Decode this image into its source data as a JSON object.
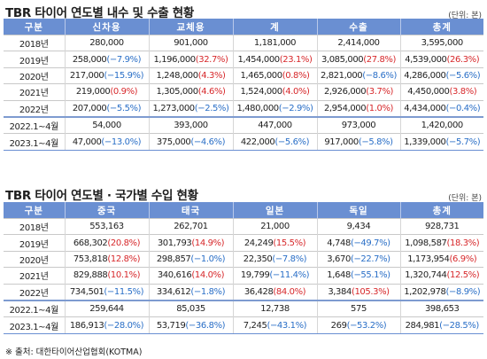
{
  "tables": [
    {
      "title": "TBR 타이어 연도별 내수 및 수출 현황",
      "unit": "(단위: 본)",
      "headers": [
        "구분",
        "신차용",
        "교체용",
        "계",
        "수출",
        "총계"
      ],
      "rows": [
        {
          "label": "2018년",
          "cells": [
            {
              "v": "280,000"
            },
            {
              "v": "901,000"
            },
            {
              "v": "1,181,000"
            },
            {
              "v": "2,414,000"
            },
            {
              "v": "3,595,000"
            }
          ]
        },
        {
          "label": "2019년",
          "cells": [
            {
              "v": "258,000",
              "c": "(−7.9%)",
              "s": "neg"
            },
            {
              "v": "1,196,000",
              "c": "(32.7%)",
              "s": "pos"
            },
            {
              "v": "1,454,000",
              "c": "(23.1%)",
              "s": "pos"
            },
            {
              "v": "3,085,000",
              "c": "(27.8%)",
              "s": "pos"
            },
            {
              "v": "4,539,000",
              "c": "(26.3%)",
              "s": "pos"
            }
          ]
        },
        {
          "label": "2020년",
          "cells": [
            {
              "v": "217,000",
              "c": "(−15.9%)",
              "s": "neg"
            },
            {
              "v": "1,248,000",
              "c": "(4.3%)",
              "s": "pos"
            },
            {
              "v": "1,465,000",
              "c": "(0.8%)",
              "s": "pos"
            },
            {
              "v": "2,821,000",
              "c": "(−8.6%)",
              "s": "neg"
            },
            {
              "v": "4,286,000",
              "c": "(−5.6%)",
              "s": "neg"
            }
          ]
        },
        {
          "label": "2021년",
          "cells": [
            {
              "v": "219,000",
              "c": "(0.9%)",
              "s": "pos"
            },
            {
              "v": "1,305,000",
              "c": "(4.6%)",
              "s": "pos"
            },
            {
              "v": "1,524,000",
              "c": "(4.0%)",
              "s": "pos"
            },
            {
              "v": "2,926,000",
              "c": "(3.7%)",
              "s": "pos"
            },
            {
              "v": "4,450,000",
              "c": "(3.8%)",
              "s": "pos"
            }
          ]
        },
        {
          "label": "2022년",
          "cells": [
            {
              "v": "207,000",
              "c": "(−5.5%)",
              "s": "neg"
            },
            {
              "v": "1,273,000",
              "c": "(−2.5%)",
              "s": "neg"
            },
            {
              "v": "1,480,000",
              "c": "(−2.9%)",
              "s": "neg"
            },
            {
              "v": "2,954,000",
              "c": "(1.0%)",
              "s": "pos"
            },
            {
              "v": "4,434,000",
              "c": "(−0.4%)",
              "s": "neg"
            }
          ]
        },
        {
          "label": "2022.1~4월",
          "group_start": true,
          "cells": [
            {
              "v": "54,000"
            },
            {
              "v": "393,000"
            },
            {
              "v": "447,000"
            },
            {
              "v": "973,000"
            },
            {
              "v": "1,420,000"
            }
          ]
        },
        {
          "label": "2023.1~4월",
          "cells": [
            {
              "v": "47,000",
              "c": "(−13.0%)",
              "s": "neg"
            },
            {
              "v": "375,000",
              "c": "(−4.6%)",
              "s": "neg"
            },
            {
              "v": "422,000",
              "c": "(−5.6%)",
              "s": "neg"
            },
            {
              "v": "917,000",
              "c": "(−5.8%)",
              "s": "neg"
            },
            {
              "v": "1,339,000",
              "c": "(−5.7%)",
              "s": "neg"
            }
          ]
        }
      ]
    },
    {
      "title": "TBR 타이어 연도별 · 국가별 수입 현황",
      "unit": "(단위: 본)",
      "headers": [
        "구분",
        "중국",
        "태국",
        "일본",
        "독일",
        "총계"
      ],
      "rows": [
        {
          "label": "2018년",
          "cells": [
            {
              "v": "553,163"
            },
            {
              "v": "262,701"
            },
            {
              "v": "21,000"
            },
            {
              "v": "9,434"
            },
            {
              "v": "928,731"
            }
          ]
        },
        {
          "label": "2019년",
          "cells": [
            {
              "v": "668,302",
              "c": "(20.8%)",
              "s": "pos"
            },
            {
              "v": "301,793",
              "c": "(14.9%)",
              "s": "pos"
            },
            {
              "v": "24,249",
              "c": "(15.5%)",
              "s": "pos"
            },
            {
              "v": "4,748",
              "c": "(−49.7%)",
              "s": "neg"
            },
            {
              "v": "1,098,587",
              "c": "(18.3%)",
              "s": "pos"
            }
          ]
        },
        {
          "label": "2020년",
          "cells": [
            {
              "v": "753,818",
              "c": "(12.8%)",
              "s": "pos"
            },
            {
              "v": "298,857",
              "c": "(−1.0%)",
              "s": "neg"
            },
            {
              "v": "22,350",
              "c": "(−7.8%)",
              "s": "neg"
            },
            {
              "v": "3,670",
              "c": "(−22.7%)",
              "s": "neg"
            },
            {
              "v": "1,173,954",
              "c": "(6.9%)",
              "s": "pos"
            }
          ]
        },
        {
          "label": "2021년",
          "cells": [
            {
              "v": "829,888",
              "c": "(10.1%)",
              "s": "pos"
            },
            {
              "v": "340,616",
              "c": "(14.0%)",
              "s": "pos"
            },
            {
              "v": "19,799",
              "c": "(−11.4%)",
              "s": "neg"
            },
            {
              "v": "1,648",
              "c": "(−55.1%)",
              "s": "neg"
            },
            {
              "v": "1,320,744",
              "c": "(12.5%)",
              "s": "pos"
            }
          ]
        },
        {
          "label": "2022년",
          "cells": [
            {
              "v": "734,501",
              "c": "(−11.5%)",
              "s": "neg"
            },
            {
              "v": "334,612",
              "c": "(−1.8%)",
              "s": "neg"
            },
            {
              "v": "36,428",
              "c": "(84.0%)",
              "s": "pos"
            },
            {
              "v": "3,384",
              "c": "(105.3%)",
              "s": "pos"
            },
            {
              "v": "1,202,978",
              "c": "(−8.9%)",
              "s": "neg"
            }
          ]
        },
        {
          "label": "2022.1~4월",
          "group_start": true,
          "cells": [
            {
              "v": "259,644"
            },
            {
              "v": "85,035"
            },
            {
              "v": "12,738"
            },
            {
              "v": "575"
            },
            {
              "v": "398,653"
            }
          ]
        },
        {
          "label": "2023.1~4월",
          "cells": [
            {
              "v": "186,913",
              "c": "(−28.0%)",
              "s": "neg"
            },
            {
              "v": "53,719",
              "c": "(−36.8%)",
              "s": "neg"
            },
            {
              "v": "7,245",
              "c": "(−43.1%)",
              "s": "neg"
            },
            {
              "v": "269",
              "c": "(−53.2%)",
              "s": "neg"
            },
            {
              "v": "284,981",
              "c": "(−28.5%)",
              "s": "neg"
            }
          ]
        }
      ]
    }
  ],
  "source": "※ 출처: 대한타이어산업협회(KOTMA)"
}
